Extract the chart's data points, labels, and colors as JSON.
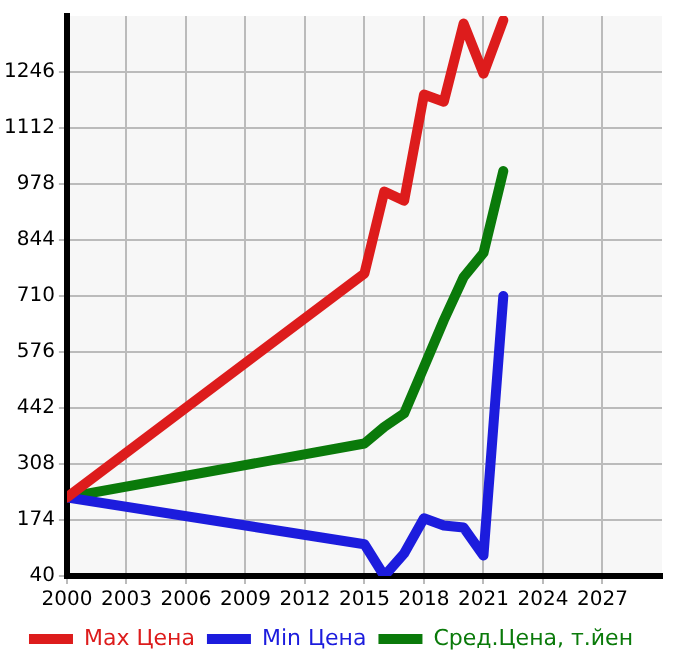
{
  "chart_data": {
    "type": "line",
    "x": [
      2000,
      2015,
      2016,
      2017,
      2018,
      2019,
      2020,
      2021,
      2022
    ],
    "series": [
      {
        "name": "Max Цена",
        "color": "#dd1c1c",
        "values": [
          228,
          764,
          960,
          938,
          1192,
          1175,
          1362,
          1242,
          1370
        ]
      },
      {
        "name": "Min Цена",
        "color": "#1c1cdd",
        "values": [
          228,
          116,
          40,
          94,
          178,
          161,
          156,
          89,
          710
        ]
      },
      {
        "name": "Сред.Цена, т.йен",
        "color": "#0a7a0a",
        "values": [
          228,
          357,
          397,
          429,
          540,
          652,
          755,
          813,
          1009
        ]
      }
    ],
    "xlim": [
      2000,
      2030
    ],
    "xticks": [
      2000,
      2003,
      2006,
      2009,
      2012,
      2015,
      2018,
      2021,
      2024,
      2027
    ],
    "ylim": [
      40,
      1380
    ],
    "yticks": [
      40,
      174,
      308,
      442,
      576,
      710,
      844,
      978,
      1112,
      1246
    ],
    "grid": true,
    "legend": "bottom",
    "marker": "none",
    "line_style": "solid"
  }
}
